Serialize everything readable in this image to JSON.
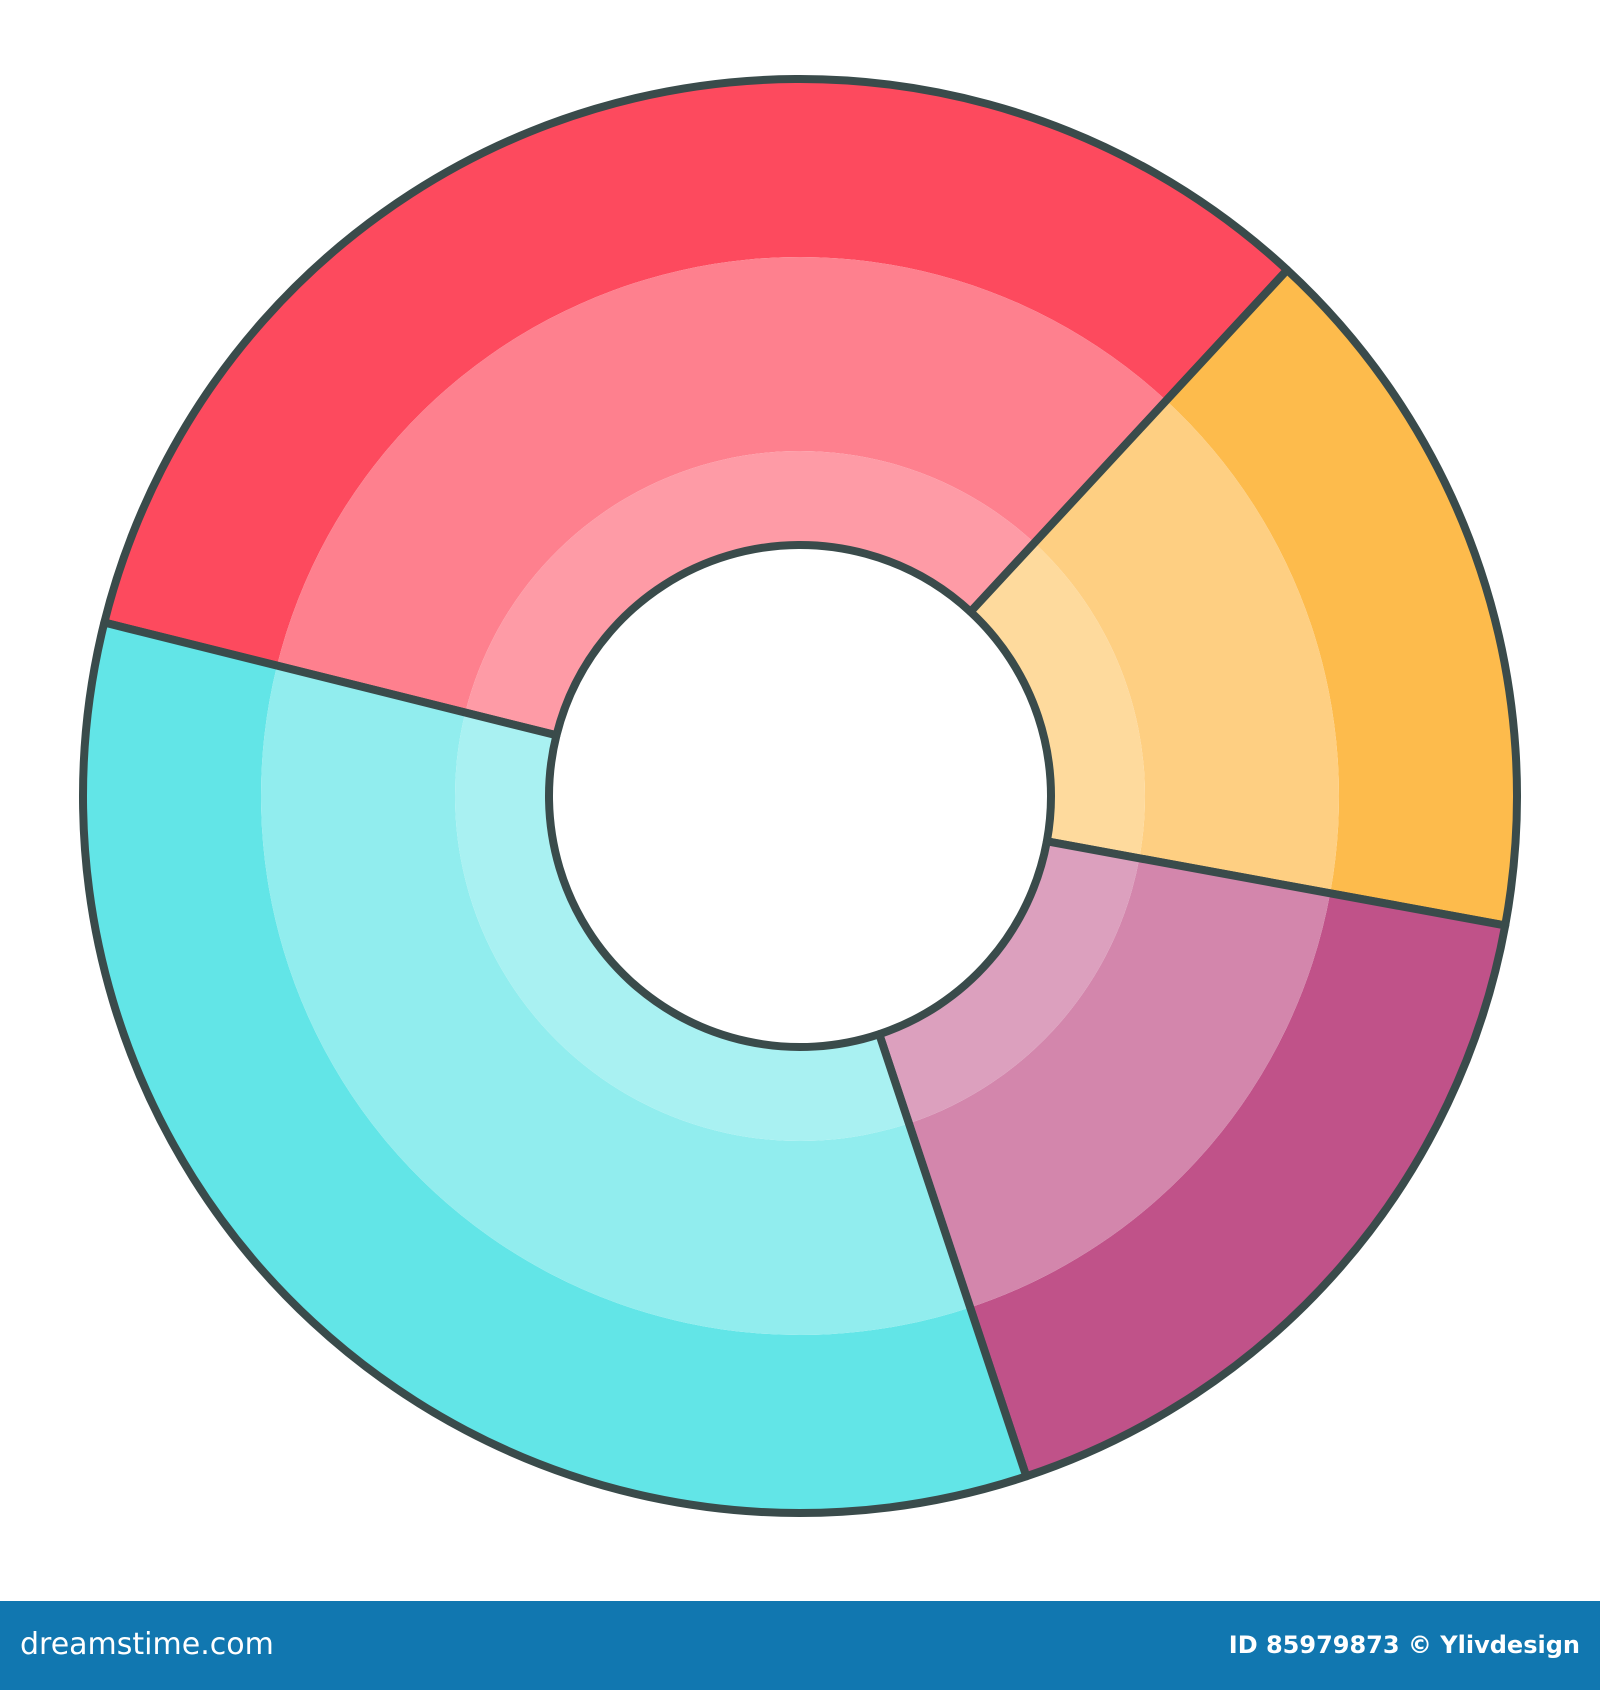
{
  "chart_data": {
    "type": "donut",
    "values": [
      33,
      16,
      17,
      34
    ],
    "colors": [
      "#fd4a5e",
      "#fdbb4c",
      "#c05289",
      "#62e5e7"
    ]
  },
  "footer": {
    "site": "dreamstime.com",
    "credit": "ID 85979873 © Ylivdesign"
  }
}
